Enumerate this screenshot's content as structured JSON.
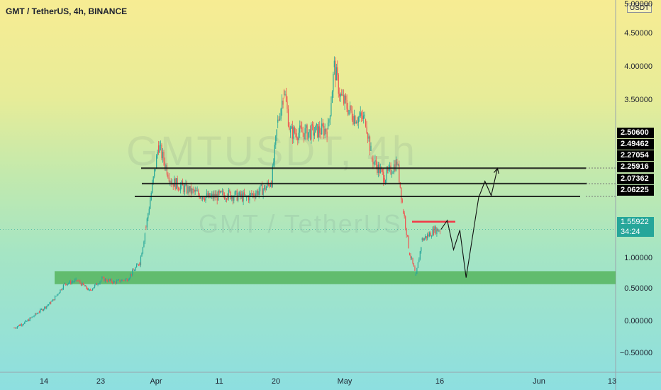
{
  "header": {
    "title": "GMT / TetherUS, 4h, BINANCE"
  },
  "watermark": {
    "ticker": "GMTUSDT, 4h",
    "pair": "GMT / TetherUS"
  },
  "price_axis": {
    "unit": "USDT",
    "ticks": [
      "5.00000",
      "4.50000",
      "4.00000",
      "3.50000",
      "1.00000",
      "0.50000",
      "0.00000",
      "−0.50000"
    ]
  },
  "time_axis": {
    "ticks": [
      "14",
      "23",
      "Apr",
      "11",
      "20",
      "May",
      "16",
      "Jun",
      "13"
    ]
  },
  "levels": [
    "2.50600",
    "2.49462",
    "2.27054",
    "2.25916",
    "2.07362",
    "2.06225"
  ],
  "current": {
    "price": "1.55922",
    "countdown": "34:24"
  },
  "colors": {
    "up": "#26a69a",
    "down": "#ef5350",
    "zone": "#4caf50",
    "resistance": "#f23645"
  },
  "chart_data": {
    "type": "candlestick",
    "title": "GMT / TetherUS, 4h, BINANCE",
    "ylim": [
      -0.85,
      5.05
    ],
    "price_path": [
      [
        "Mar 9",
        0.05
      ],
      [
        "Mar 11",
        0.15
      ],
      [
        "Mar 13",
        0.3
      ],
      [
        "Mar 15",
        0.45
      ],
      [
        "Mar 17",
        0.72
      ],
      [
        "Mar 19",
        0.78
      ],
      [
        "Mar 21",
        0.62
      ],
      [
        "Mar 23",
        0.8
      ],
      [
        "Mar 25",
        0.75
      ],
      [
        "Mar 27",
        0.8
      ],
      [
        "Mar 29",
        1.05
      ],
      [
        "Mar 30",
        1.6
      ],
      [
        "Apr 1",
        2.85
      ],
      [
        "Apr 3",
        2.3
      ],
      [
        "Apr 6",
        2.15
      ],
      [
        "Apr 9",
        2.05
      ],
      [
        "Apr 12",
        2.1
      ],
      [
        "Apr 15",
        2.05
      ],
      [
        "Apr 18",
        2.2
      ],
      [
        "Apr 19",
        2.3
      ],
      [
        "Apr 20",
        3.2
      ],
      [
        "Apr 21",
        3.7
      ],
      [
        "Apr 22",
        3.05
      ],
      [
        "Apr 25",
        3.05
      ],
      [
        "Apr 28",
        3.1
      ],
      [
        "Apr 29",
        4.05
      ],
      [
        "Apr 30",
        3.6
      ],
      [
        "May 2",
        3.3
      ],
      [
        "May 4",
        3.25
      ],
      [
        "May 5",
        2.65
      ],
      [
        "May 7",
        2.35
      ],
      [
        "May 9",
        2.6
      ],
      [
        "May 10",
        1.85
      ],
      [
        "May 11",
        1.2
      ],
      [
        "May 12",
        0.85
      ],
      [
        "May 13",
        1.4
      ],
      [
        "May 15",
        1.55
      ],
      [
        "May 16",
        1.56
      ]
    ],
    "support_zone": [
      0.72,
      0.92
    ],
    "resistance_line": 1.68,
    "horizontal_levels": [
      [
        2.506,
        2.49462
      ],
      [
        2.27054,
        2.25916
      ],
      [
        2.07362,
        2.06225
      ]
    ],
    "projection": [
      [
        "May 16",
        1.56
      ],
      [
        "May 17",
        1.7
      ],
      [
        "May 18",
        1.25
      ],
      [
        "May 19",
        1.55
      ],
      [
        "May 20",
        0.82
      ],
      [
        "May 22",
        2.05
      ],
      [
        "May 23",
        2.3
      ],
      [
        "May 24",
        2.08
      ],
      [
        "May 25",
        2.5
      ]
    ]
  }
}
